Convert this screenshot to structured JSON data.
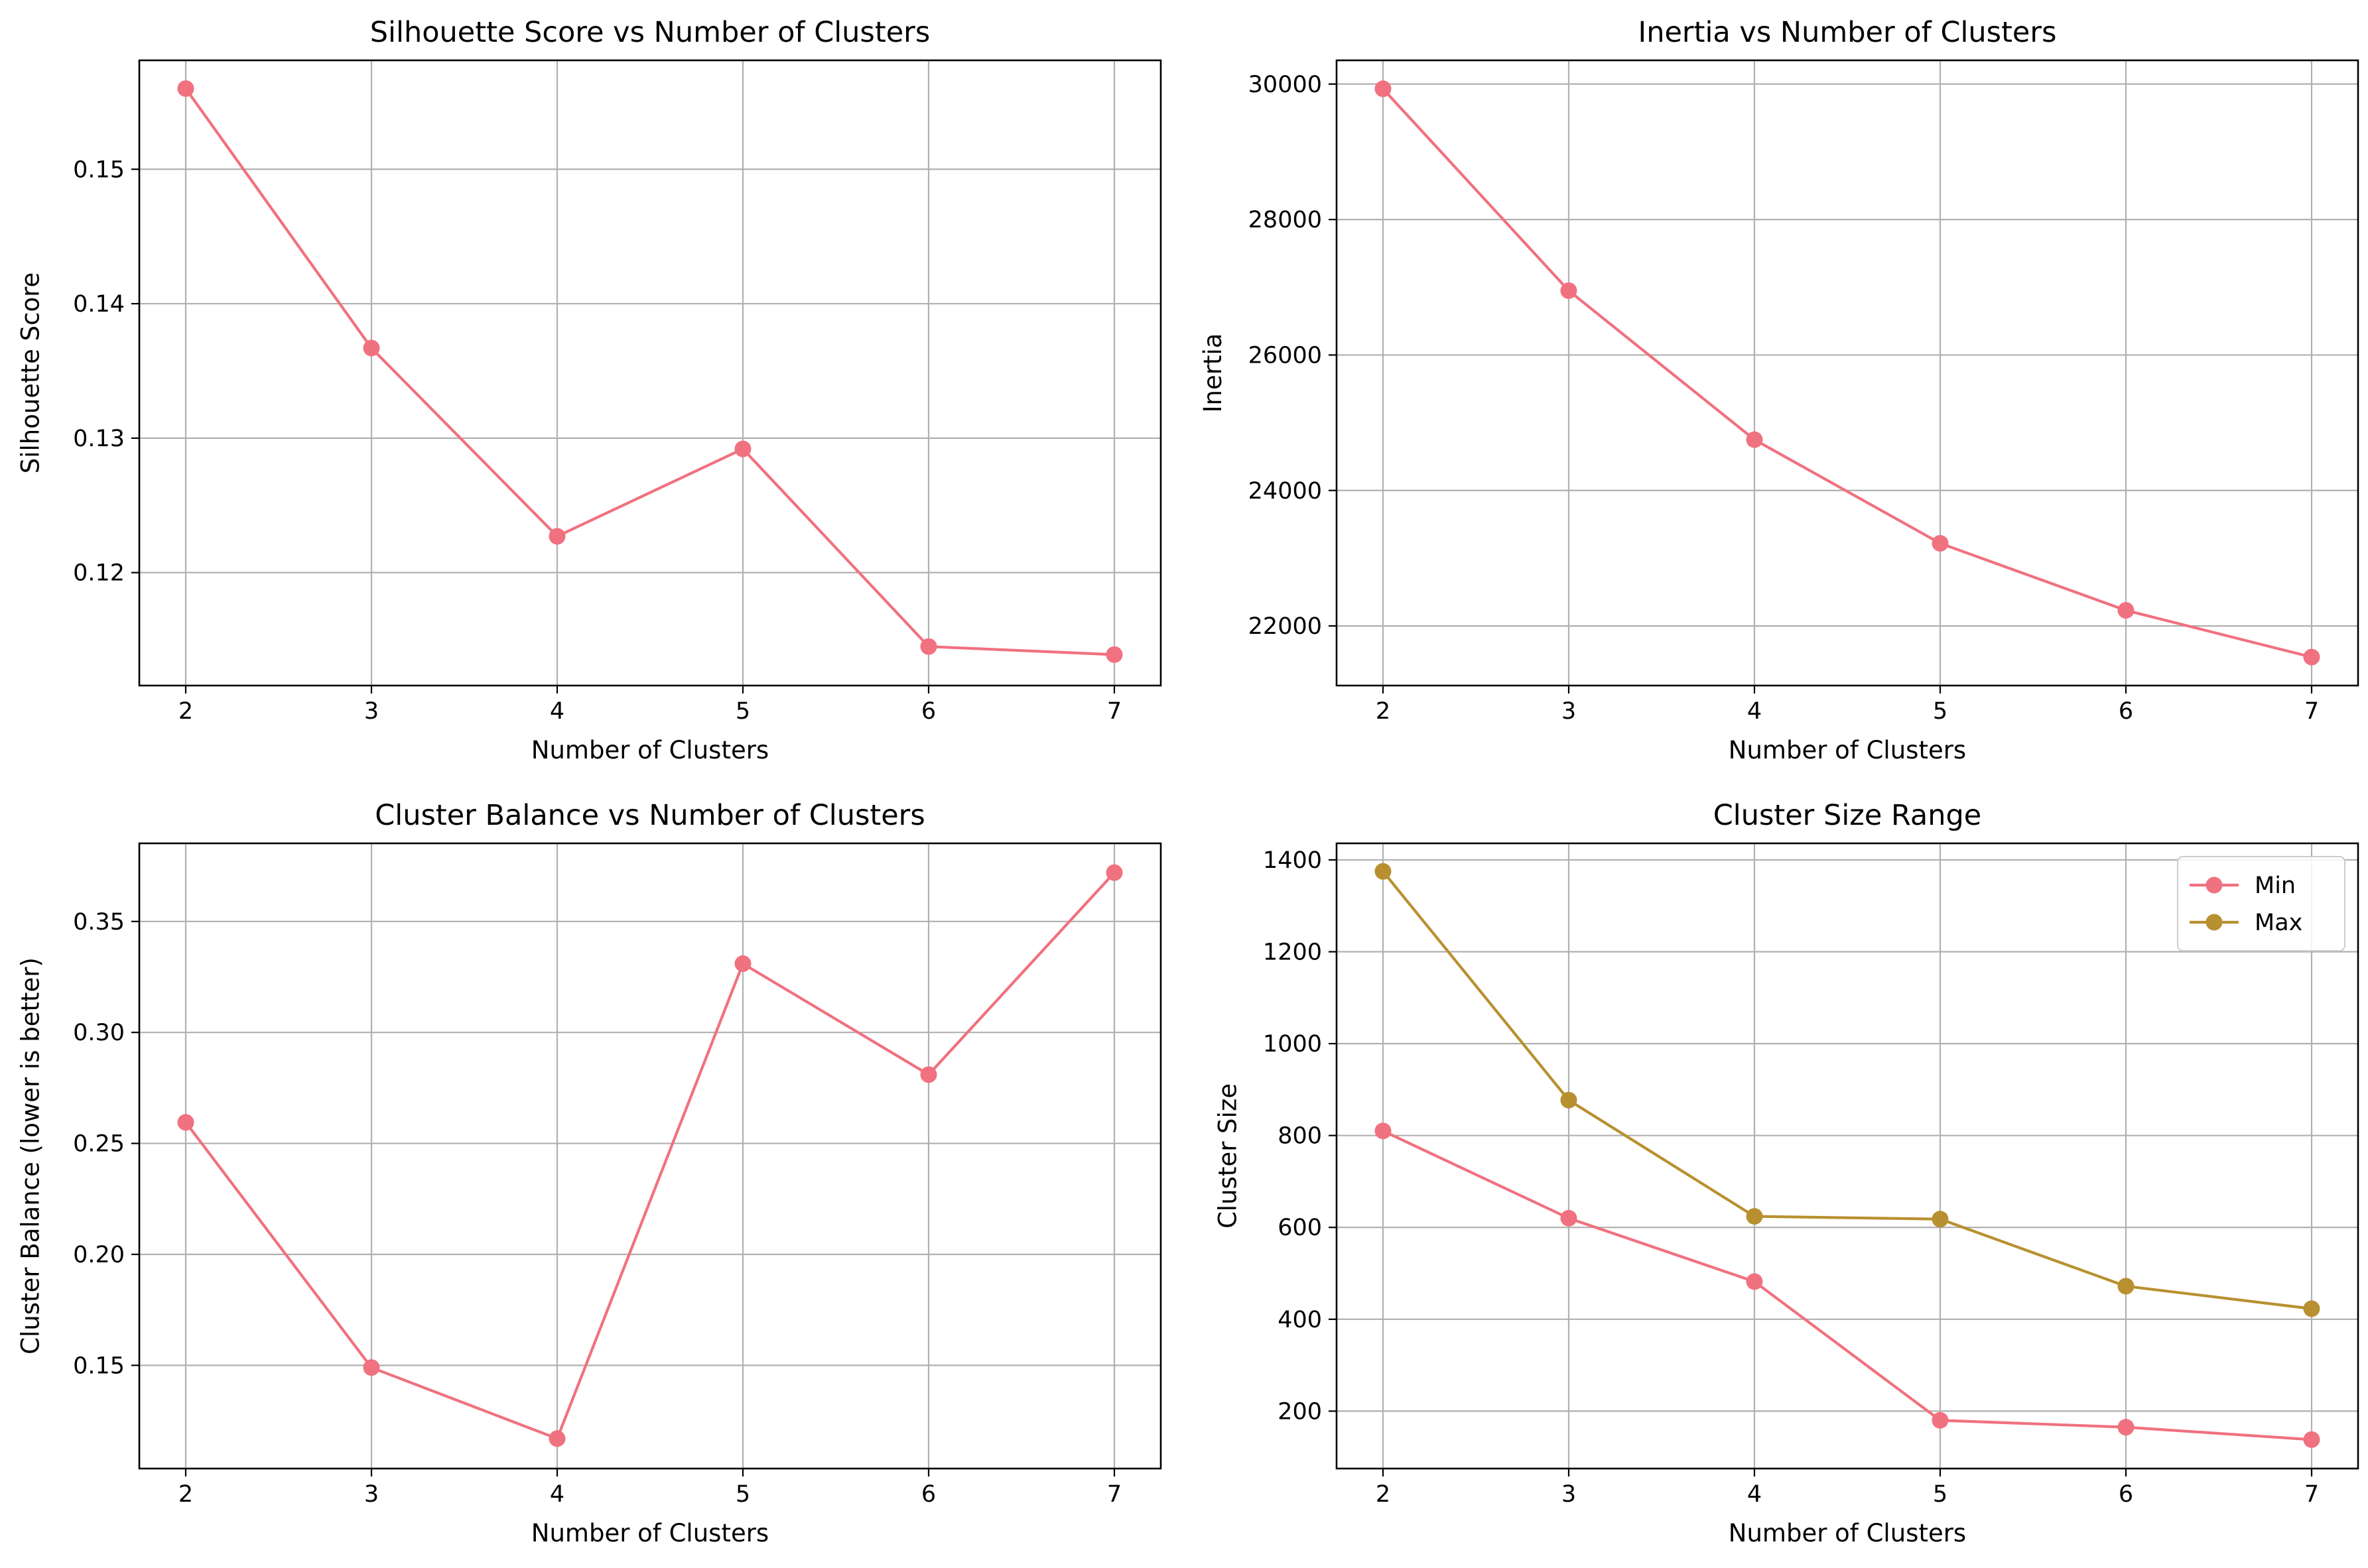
{
  "chart_data": [
    {
      "type": "line",
      "title": "Silhouette Score vs Number of Clusters",
      "xlabel": "Number of Clusters",
      "ylabel": "Silhouette Score",
      "x": [
        2,
        3,
        4,
        5,
        6,
        7
      ],
      "xticks": [
        "2",
        "3",
        "4",
        "5",
        "6",
        "7"
      ],
      "yticks": [
        0.12,
        0.13,
        0.14,
        0.15
      ],
      "ytick_labels": [
        "0.12",
        "0.13",
        "0.14",
        "0.15"
      ],
      "ylim": [
        0.1116,
        0.1581
      ],
      "grid": true,
      "series": [
        {
          "values": [
            0.156,
            0.1367,
            0.1227,
            0.1292,
            0.1145,
            0.1139
          ],
          "color": "#f0717f"
        }
      ]
    },
    {
      "type": "line",
      "title": "Inertia vs Number of Clusters",
      "xlabel": "Number of Clusters",
      "ylabel": "Inertia",
      "x": [
        2,
        3,
        4,
        5,
        6,
        7
      ],
      "xticks": [
        "2",
        "3",
        "4",
        "5",
        "6",
        "7"
      ],
      "yticks": [
        22000,
        24000,
        26000,
        28000,
        30000
      ],
      "ytick_labels": [
        "22000",
        "24000",
        "26000",
        "28000",
        "30000"
      ],
      "ylim": [
        21120,
        30350
      ],
      "grid": true,
      "series": [
        {
          "values": [
            29930,
            26950,
            24750,
            23220,
            22230,
            21540
          ],
          "color": "#f0717f"
        }
      ]
    },
    {
      "type": "line",
      "title": "Cluster Balance vs Number of Clusters",
      "xlabel": "Number of Clusters",
      "ylabel": "Cluster Balance (lower is better)",
      "x": [
        2,
        3,
        4,
        5,
        6,
        7
      ],
      "xticks": [
        "2",
        "3",
        "4",
        "5",
        "6",
        "7"
      ],
      "yticks": [
        0.15,
        0.2,
        0.25,
        0.3,
        0.35
      ],
      "ytick_labels": [
        "0.15",
        "0.20",
        "0.25",
        "0.30",
        "0.35"
      ],
      "ylim": [
        0.1035,
        0.3852
      ],
      "grid": true,
      "series": [
        {
          "values": [
            0.2595,
            0.149,
            0.117,
            0.331,
            0.281,
            0.372
          ],
          "color": "#f0717f"
        }
      ]
    },
    {
      "type": "line",
      "title": "Cluster Size Range",
      "xlabel": "Number of Clusters",
      "ylabel": "Cluster Size",
      "x": [
        2,
        3,
        4,
        5,
        6,
        7
      ],
      "xticks": [
        "2",
        "3",
        "4",
        "5",
        "6",
        "7"
      ],
      "yticks": [
        200,
        400,
        600,
        800,
        1000,
        1200,
        1400
      ],
      "ytick_labels": [
        "200",
        "400",
        "600",
        "800",
        "1000",
        "1200",
        "1400"
      ],
      "ylim": [
        75,
        1436
      ],
      "grid": true,
      "legend": "top-right",
      "series": [
        {
          "name": "Min",
          "values": [
            810,
            620,
            482,
            180,
            165,
            138
          ],
          "color": "#f0717f"
        },
        {
          "name": "Max",
          "values": [
            1375,
            877,
            624,
            618,
            472,
            423
          ],
          "color": "#b8902f"
        }
      ]
    }
  ]
}
